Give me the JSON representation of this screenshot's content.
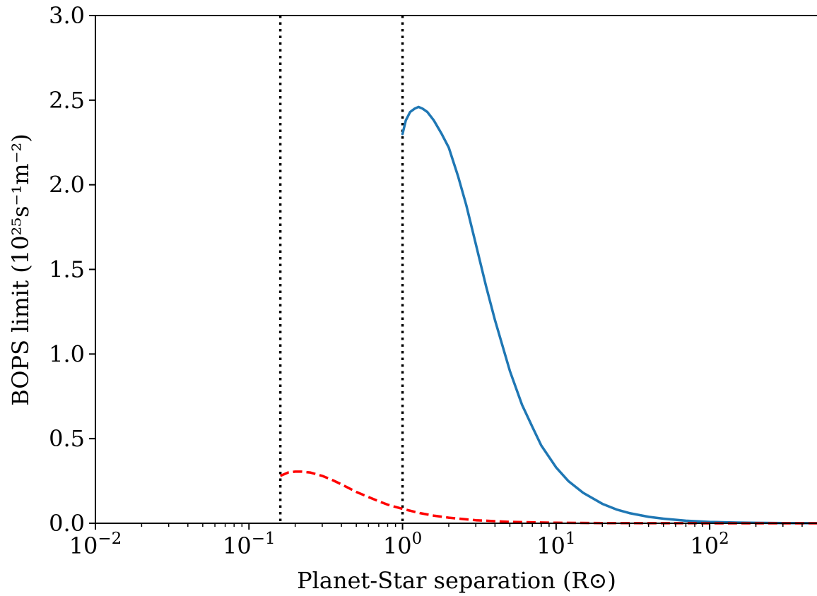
{
  "chart_data": {
    "type": "line",
    "title": "",
    "xlabel": "Planet-Star separation (R⊙)",
    "ylabel": "BOPS limit (10²⁵s⁻¹m⁻²)",
    "xscale": "log",
    "xlim": [
      0.01,
      500
    ],
    "ylim": [
      0,
      3.0
    ],
    "grid": false,
    "legend": "none",
    "x_ticks": [
      {
        "value": 0.01,
        "base": "10",
        "exp": "−2"
      },
      {
        "value": 0.1,
        "base": "10",
        "exp": "−1"
      },
      {
        "value": 1,
        "base": "10",
        "exp": "0"
      },
      {
        "value": 10,
        "base": "10",
        "exp": "1"
      },
      {
        "value": 100,
        "base": "10",
        "exp": "2"
      }
    ],
    "y_ticks": [
      {
        "value": 0.0,
        "label": "0.0"
      },
      {
        "value": 0.5,
        "label": "0.5"
      },
      {
        "value": 1.0,
        "label": "1.0"
      },
      {
        "value": 1.5,
        "label": "1.5"
      },
      {
        "value": 2.0,
        "label": "2.0"
      },
      {
        "value": 2.5,
        "label": "2.5"
      },
      {
        "value": 3.0,
        "label": "3.0"
      }
    ],
    "series": [
      {
        "color": "#1f77b4",
        "style": "solid",
        "x": [
          1.0,
          1.05,
          1.12,
          1.2,
          1.27,
          1.35,
          1.45,
          1.6,
          1.8,
          2.0,
          2.3,
          2.6,
          3.0,
          3.5,
          4.0,
          5.0,
          6.0,
          7.0,
          8.0,
          10.0,
          12.0,
          15.0,
          20.0,
          25.0,
          30.0,
          40.0,
          50.0,
          70.0,
          100.0,
          150.0,
          200.0,
          300.0,
          500.0
        ],
        "y": [
          2.3,
          2.38,
          2.43,
          2.45,
          2.46,
          2.45,
          2.43,
          2.38,
          2.3,
          2.22,
          2.05,
          1.88,
          1.65,
          1.4,
          1.2,
          0.9,
          0.7,
          0.57,
          0.46,
          0.33,
          0.25,
          0.18,
          0.115,
          0.08,
          0.06,
          0.038,
          0.027,
          0.015,
          0.008,
          0.004,
          0.0025,
          0.0012,
          0.0005
        ]
      },
      {
        "color": "#ff0000",
        "style": "dashed",
        "x": [
          0.16,
          0.18,
          0.2,
          0.22,
          0.25,
          0.3,
          0.35,
          0.4,
          0.5,
          0.6,
          0.7,
          0.8,
          1.0,
          1.3,
          1.6,
          2.0,
          3.0,
          5.0,
          10.0,
          20.0,
          50.0,
          100.0,
          500.0
        ],
        "y": [
          0.28,
          0.3,
          0.305,
          0.305,
          0.3,
          0.28,
          0.255,
          0.23,
          0.185,
          0.155,
          0.13,
          0.11,
          0.085,
          0.06,
          0.045,
          0.033,
          0.018,
          0.008,
          0.003,
          0.0012,
          0.0004,
          0.0002,
          0.0
        ]
      }
    ],
    "vlines": [
      {
        "x": 0.16,
        "color": "#000000",
        "style": "dotted"
      },
      {
        "x": 1.0,
        "color": "#000000",
        "style": "dotted"
      }
    ]
  }
}
